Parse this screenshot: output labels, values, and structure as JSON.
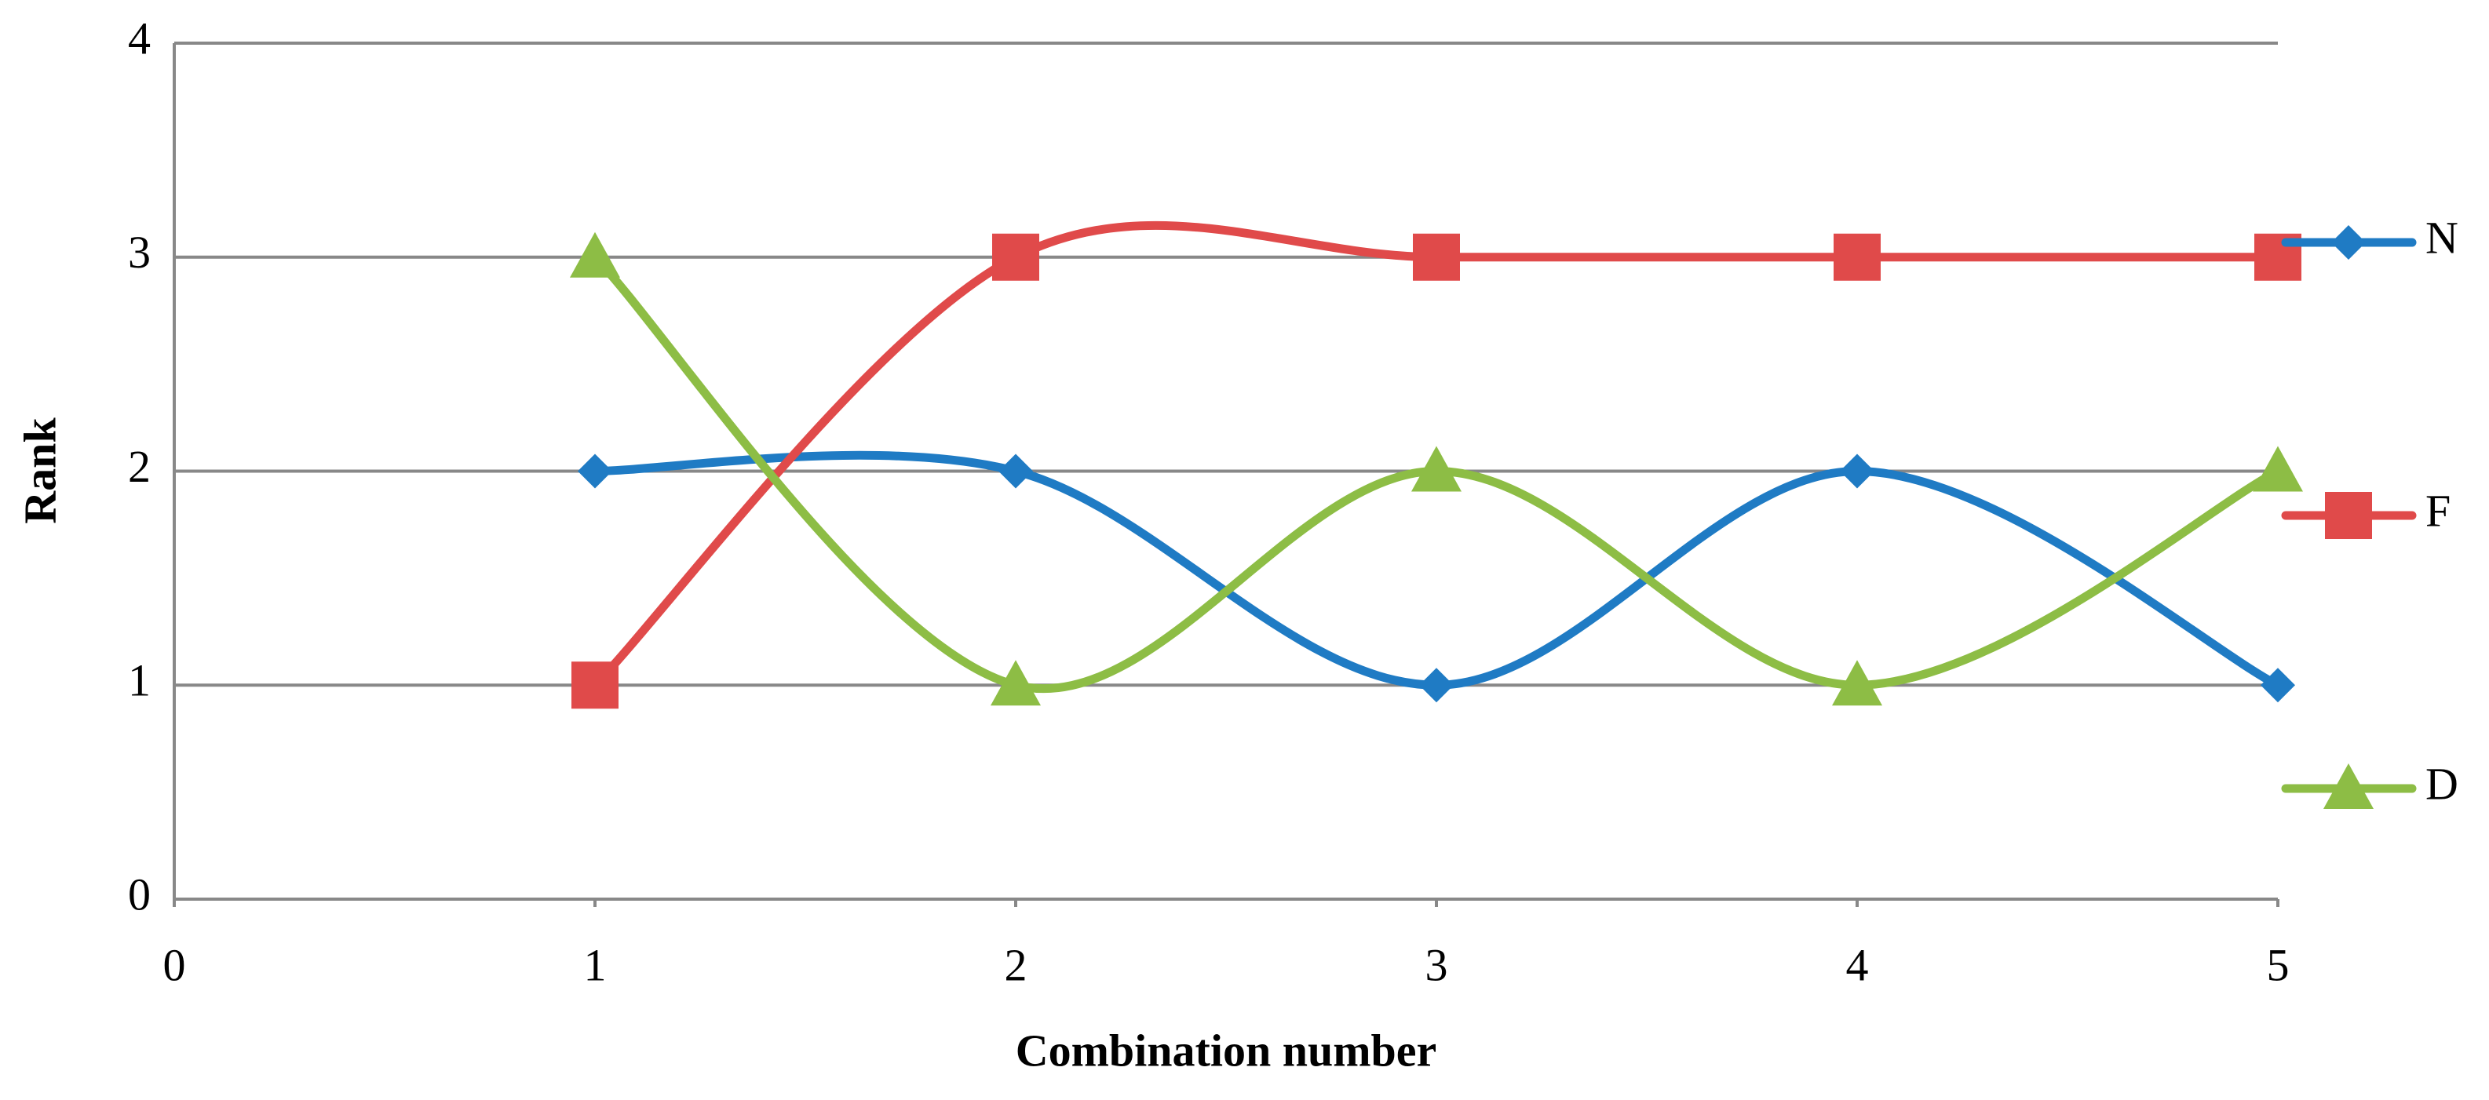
{
  "chart_data": {
    "type": "line",
    "smooth": true,
    "x_label": "Combination number",
    "y_label": "Rank",
    "x": [
      1,
      2,
      3,
      4,
      5
    ],
    "series": [
      {
        "name": "N",
        "color": "#1f7bc4",
        "marker": "diamond",
        "values": [
          2,
          2,
          1,
          2,
          1
        ]
      },
      {
        "name": "F",
        "color": "#e04a4a",
        "marker": "square",
        "values": [
          1,
          3,
          3,
          3,
          3
        ]
      },
      {
        "name": "D",
        "color": "#8dbd45",
        "marker": "triangle",
        "values": [
          3,
          1,
          2,
          1,
          2
        ]
      }
    ],
    "xlim": [
      0,
      5
    ],
    "xticks": [
      0,
      1,
      2,
      3,
      4,
      5
    ],
    "ylim": [
      0,
      4
    ],
    "yticks": [
      0,
      1,
      2,
      3,
      4
    ],
    "grid": true,
    "legend": "right"
  }
}
